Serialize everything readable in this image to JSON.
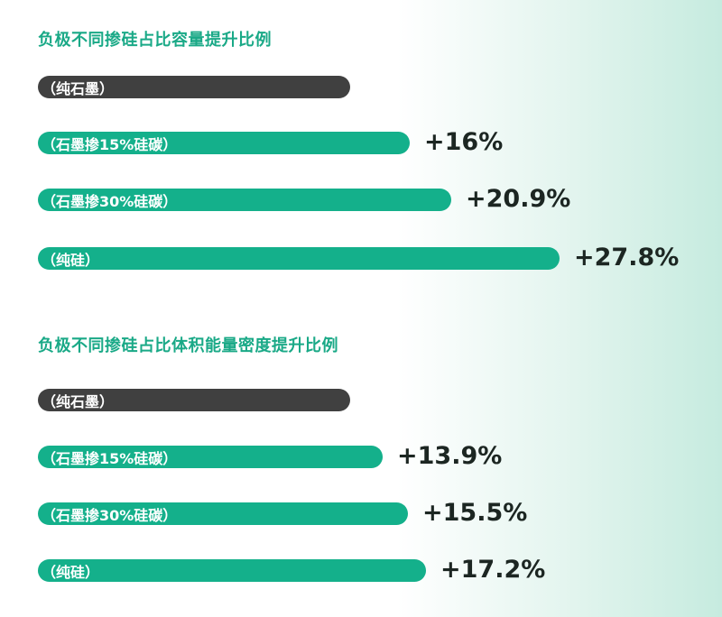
{
  "colors": {
    "title": "#1aa987",
    "baseline_bar": "#404040",
    "bar": "#14b08b",
    "value": "#1c2622"
  },
  "chart_data": [
    {
      "type": "bar",
      "orientation": "horizontal",
      "title": "负极不同掺硅占比容量提升比例",
      "categories": [
        "（纯石墨）",
        "（石墨掺15%硅碳）",
        "（石墨掺30%硅碳）",
        "（纯硅）"
      ],
      "values": [
        0,
        16,
        20.9,
        27.8
      ],
      "labels": [
        "",
        "+16%",
        "+20.9%",
        "+27.8%"
      ]
    },
    {
      "type": "bar",
      "orientation": "horizontal",
      "title": "负极不同掺硅占比体积能量密度提升比例",
      "categories": [
        "（纯石墨）",
        "（石墨掺15%硅碳）",
        "（石墨掺30%硅碳）",
        "（纯硅）"
      ],
      "values": [
        0,
        13.9,
        15.5,
        17.2
      ],
      "labels": [
        "",
        "+13.9%",
        "+15.5%",
        "+17.2%"
      ]
    }
  ]
}
